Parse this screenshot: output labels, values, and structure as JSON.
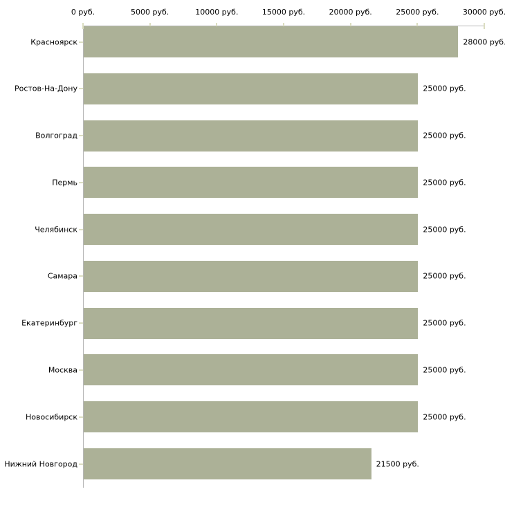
{
  "chart_data": {
    "type": "bar",
    "orientation": "horizontal",
    "title": "",
    "xlabel": "",
    "ylabel": "",
    "unit": "руб.",
    "categories": [
      "Красноярск",
      "Ростов-На-Дону",
      "Волгоград",
      "Пермь",
      "Челябинск",
      "Самара",
      "Екатеринбург",
      "Москва",
      "Новосибирск",
      "Нижний Новгород"
    ],
    "values": [
      28000,
      25000,
      25000,
      25000,
      25000,
      25000,
      25000,
      25000,
      25000,
      21500
    ],
    "value_labels": [
      "28000 руб.",
      "25000 руб.",
      "25000 руб.",
      "25000 руб.",
      "25000 руб.",
      "25000 руб.",
      "25000 руб.",
      "25000 руб.",
      "25000 руб.",
      "21500 руб."
    ],
    "x_ticks": [
      0,
      5000,
      10000,
      15000,
      20000,
      25000,
      30000
    ],
    "x_tick_labels": [
      "0 руб.",
      "5000 руб.",
      "10000 руб.",
      "15000 руб.",
      "20000 руб.",
      "25000 руб.",
      "30000 руб."
    ],
    "xlim": [
      0,
      30000
    ],
    "axis_position": "top",
    "grid": false,
    "legend": false,
    "colors": {
      "bar": "#acb197",
      "axis": "#b6b6b6",
      "tick": "#dbddc1",
      "text": "#000000",
      "background": "#ffffff"
    }
  }
}
